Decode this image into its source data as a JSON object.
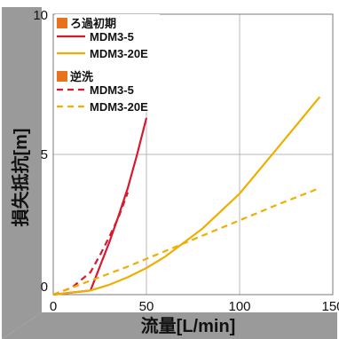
{
  "chart_data": {
    "type": "line",
    "xlabel": "流量[L/min]",
    "ylabel": "損失抵抗[m]",
    "xlim": [
      0,
      150
    ],
    "ylim": [
      0,
      10
    ],
    "x_ticks": [
      "0",
      "50",
      "100",
      "150"
    ],
    "y_ticks": [
      "0",
      "5",
      "10"
    ],
    "grid": true,
    "legend_position": "top-left",
    "legend_groups": [
      {
        "name": "ろ過初期",
        "color": "#E8731F",
        "series_indexes": [
          0,
          1
        ]
      },
      {
        "name": "逆洗",
        "color": "#E8731F",
        "series_indexes": [
          2,
          3
        ]
      }
    ],
    "series": [
      {
        "name": "MDM3-5",
        "group": "ろ過初期",
        "color": "#D7192F",
        "dash": "solid",
        "points": [
          [
            0,
            0
          ],
          [
            20,
            0.15
          ],
          [
            25,
            1.0
          ],
          [
            30,
            1.85
          ],
          [
            35,
            2.8
          ],
          [
            40,
            3.8
          ],
          [
            45,
            5.0
          ],
          [
            50,
            6.3
          ]
        ]
      },
      {
        "name": "MDM3-20E",
        "group": "ろ過初期",
        "color": "#F0AE00",
        "dash": "solid",
        "points": [
          [
            0,
            0
          ],
          [
            20,
            0.15
          ],
          [
            30,
            0.35
          ],
          [
            40,
            0.62
          ],
          [
            50,
            0.95
          ],
          [
            60,
            1.35
          ],
          [
            80,
            2.35
          ],
          [
            100,
            3.6
          ],
          [
            120,
            5.2
          ],
          [
            143,
            7.05
          ]
        ]
      },
      {
        "name": "MDM3-5",
        "group": "逆洗",
        "color": "#D7192F",
        "dash": "dashed",
        "points": [
          [
            0,
            0
          ],
          [
            10,
            0.25
          ],
          [
            20,
            0.8
          ],
          [
            25,
            1.4
          ],
          [
            30,
            2.05
          ],
          [
            35,
            2.75
          ],
          [
            40,
            3.65
          ]
        ]
      },
      {
        "name": "MDM3-20E",
        "group": "逆洗",
        "color": "#F0AE00",
        "dash": "dashed",
        "points": [
          [
            0,
            0
          ],
          [
            20,
            0.5
          ],
          [
            40,
            1.0
          ],
          [
            60,
            1.55
          ],
          [
            80,
            2.1
          ],
          [
            100,
            2.65
          ],
          [
            120,
            3.2
          ],
          [
            143,
            3.8
          ]
        ]
      }
    ]
  }
}
